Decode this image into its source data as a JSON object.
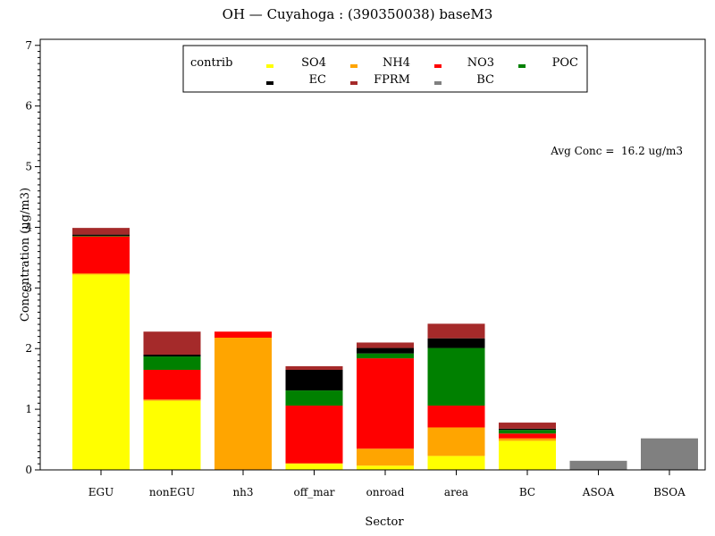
{
  "chart_data": {
    "type": "bar",
    "stacked": true,
    "title": "OH — Cuyahoga : (390350038) baseM3",
    "xlabel": "Sector",
    "ylabel": "Concentration (ug/m3)",
    "ylim": [
      0,
      7.1
    ],
    "yticks": [
      0,
      1,
      2,
      3,
      4,
      5,
      6,
      7
    ],
    "categories": [
      "EGU",
      "nonEGU",
      "nh3",
      "off_mar",
      "onroad",
      "area",
      "BC",
      "ASOA",
      "BSOA"
    ],
    "series": [
      {
        "name": "SO4",
        "color": "#ffff00",
        "values": [
          3.22,
          1.14,
          0.0,
          0.1,
          0.07,
          0.23,
          0.48,
          0.0,
          0.0
        ]
      },
      {
        "name": "NH4",
        "color": "#ffa500",
        "values": [
          0.02,
          0.02,
          2.18,
          0.01,
          0.28,
          0.47,
          0.04,
          0.0,
          0.0
        ]
      },
      {
        "name": "NO3",
        "color": "#ff0000",
        "values": [
          0.61,
          0.49,
          0.1,
          0.95,
          1.49,
          0.36,
          0.08,
          0.0,
          0.0
        ]
      },
      {
        "name": "POC",
        "color": "#008000",
        "values": [
          0.01,
          0.22,
          0.0,
          0.25,
          0.08,
          0.95,
          0.06,
          0.0,
          0.0
        ]
      },
      {
        "name": "EC",
        "color": "#000000",
        "values": [
          0.02,
          0.03,
          0.0,
          0.34,
          0.09,
          0.16,
          0.02,
          0.0,
          0.0
        ]
      },
      {
        "name": "FPRM",
        "color": "#a52a2a",
        "values": [
          0.11,
          0.38,
          0.0,
          0.06,
          0.09,
          0.24,
          0.1,
          0.0,
          0.0
        ]
      },
      {
        "name": "BC",
        "color": "#808080",
        "values": [
          0.0,
          0.0,
          0.0,
          0.0,
          0.0,
          0.0,
          0.0,
          0.15,
          0.52
        ]
      }
    ],
    "legend": {
      "title": "contrib",
      "placement": "top-center"
    },
    "annotation": "Avg Conc =  16.2 ug/m3"
  }
}
